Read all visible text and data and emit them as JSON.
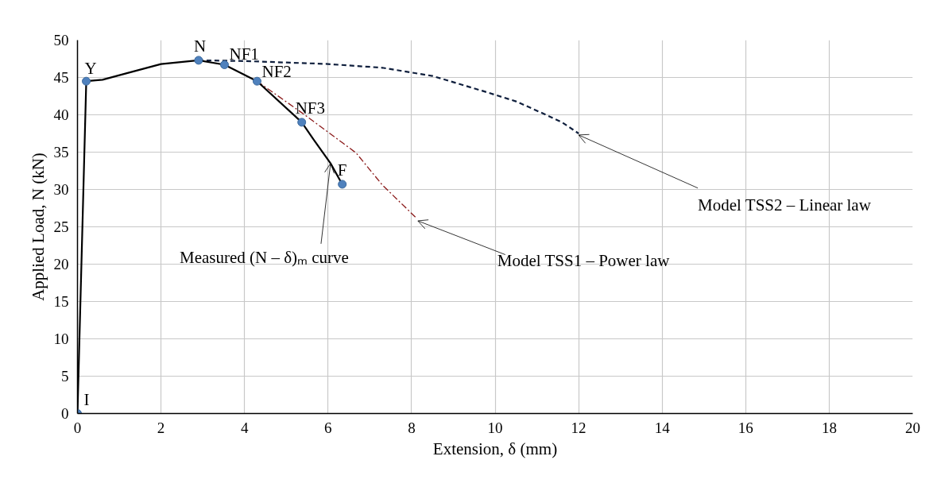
{
  "chart_data": {
    "type": "line",
    "xlabel": "Extension, δ (mm)",
    "ylabel": "Applied Load, N (kN)",
    "xlim": [
      0,
      20
    ],
    "ylim": [
      0,
      50
    ],
    "xticks": [
      0,
      2,
      4,
      6,
      8,
      10,
      12,
      14,
      16,
      18,
      20
    ],
    "yticks": [
      0,
      5,
      10,
      15,
      20,
      25,
      30,
      35,
      40,
      45,
      50
    ],
    "grid": true,
    "series": [
      {
        "line_style": "dashed",
        "color": "#0f1f3d",
        "x": [
          2.9,
          4.0,
          5.0,
          6.0,
          7.3,
          8.5,
          9.7,
          10.5,
          11.1,
          11.6,
          12.0
        ],
        "values": [
          47.3,
          47.2,
          47.0,
          46.8,
          46.3,
          45.2,
          43.2,
          41.8,
          40.3,
          39.0,
          37.5
        ]
      },
      {
        "line_style": "dashdot",
        "color": "#8b1a1a",
        "x": [
          4.3,
          5.39,
          6.67,
          7.3,
          8.11
        ],
        "values": [
          44.5,
          40.2,
          34.9,
          30.6,
          26.2
        ]
      },
      {
        "line_style": "solid",
        "color": "#000000",
        "x": [
          0,
          0.21,
          0.6,
          1.2,
          2.0,
          2.9,
          3.52,
          4.3,
          5.37,
          5.64,
          6.06,
          6.34
        ],
        "values": [
          0,
          44.5,
          44.7,
          45.6,
          46.8,
          47.3,
          46.7,
          44.5,
          39.0,
          36.8,
          33.5,
          30.7
        ]
      },
      {
        "type": "scatter",
        "marker": "circle",
        "color": "#4f81bd",
        "x": [
          0,
          0.21,
          2.9,
          3.52,
          4.3,
          5.37,
          6.34
        ],
        "values": [
          0,
          44.5,
          47.3,
          46.7,
          44.5,
          39.0,
          30.7
        ]
      }
    ],
    "annotations": [
      {
        "text": "I",
        "x": 0,
        "y": 0
      },
      {
        "text": "Y",
        "x": 0.21,
        "y": 44.5
      },
      {
        "text": "N",
        "x": 2.9,
        "y": 47.3
      },
      {
        "text": "NF1",
        "x": 3.52,
        "y": 46.7
      },
      {
        "text": "NF2",
        "x": 4.3,
        "y": 44.5
      },
      {
        "text": "NF3",
        "x": 5.37,
        "y": 39.0
      },
      {
        "text": "F",
        "x": 6.34,
        "y": 30.7
      },
      {
        "text": "Measured (N – δ)ₘ curve",
        "x": 6.06,
        "y": 33.5
      },
      {
        "text": "Model TSS1 – Power law",
        "x": 8.15,
        "y": 25.8
      },
      {
        "text": "Model TSS2 – Linear law",
        "x": 12.0,
        "y": 37.3
      }
    ]
  }
}
